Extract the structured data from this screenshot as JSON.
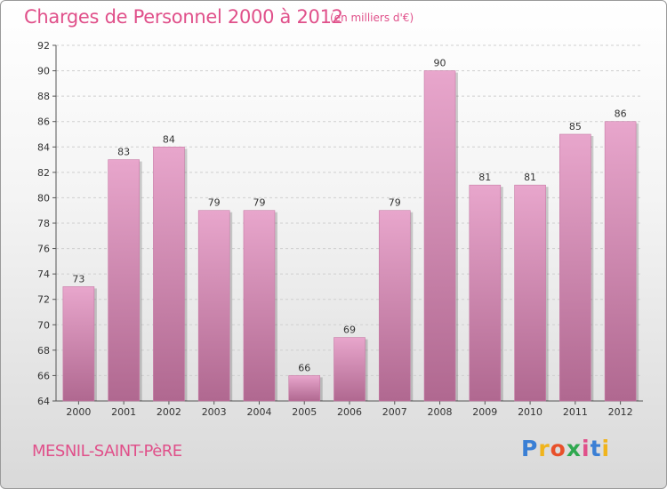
{
  "header": {
    "title": "Charges de Personnel 2000 à 2012",
    "subtitle": "(en milliers d'€)"
  },
  "footer": {
    "commune": "MESNIL-SAINT-PèRE",
    "logo_text": "Proxiti"
  },
  "colors": {
    "accent": "#e0508a",
    "bar_top": "#e8a6cc",
    "bar_bottom": "#b06890"
  },
  "chart_data": {
    "type": "bar",
    "categories": [
      "2000",
      "2001",
      "2002",
      "2003",
      "2004",
      "2005",
      "2006",
      "2007",
      "2008",
      "2009",
      "2010",
      "2011",
      "2012"
    ],
    "values": [
      73,
      83,
      84,
      79,
      79,
      66,
      69,
      79,
      90,
      81,
      81,
      85,
      86
    ],
    "ylim": [
      64,
      92
    ],
    "yticks": [
      64,
      66,
      68,
      70,
      72,
      74,
      76,
      78,
      80,
      82,
      84,
      86,
      88,
      90,
      92
    ],
    "grid": true,
    "data_labels": true
  }
}
